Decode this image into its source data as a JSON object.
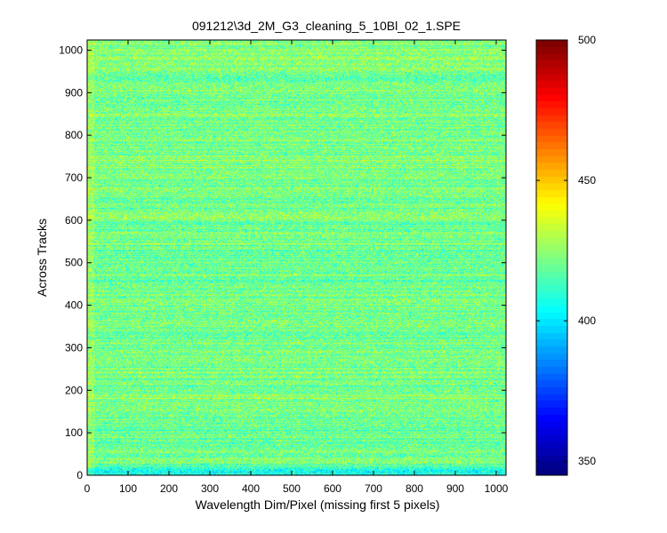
{
  "chart_data": {
    "type": "heatmap",
    "title": "091212\\3d_2M_G3_cleaning_5_10Bl_02_1.SPE",
    "xlabel": "Wavelength Dim/Pixel (missing first 5 pixels)",
    "ylabel": "Across Tracks",
    "xlim": [
      0,
      1024
    ],
    "ylim": [
      0,
      1024
    ],
    "x_ticks": [
      0,
      100,
      200,
      300,
      400,
      500,
      600,
      700,
      800,
      900,
      1000
    ],
    "y_ticks": [
      0,
      100,
      200,
      300,
      400,
      500,
      600,
      700,
      800,
      900,
      1000
    ],
    "colorbar": {
      "colormap": "jet",
      "range": [
        345,
        500
      ],
      "ticks": [
        350,
        400,
        450,
        500
      ]
    },
    "values_summary": {
      "typical_value_range": [
        395,
        440
      ],
      "description_of_pattern": "noisy horizontal streaks; lower values near rows 0-40; values around 410-435 elsewhere"
    }
  }
}
